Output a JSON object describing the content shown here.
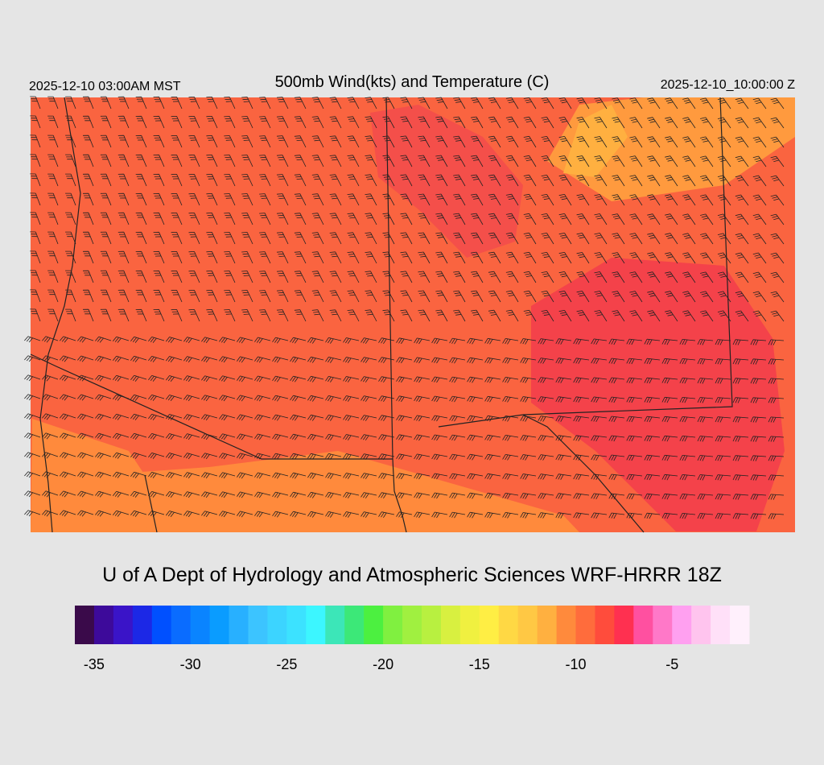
{
  "header": {
    "left": "2025-12-10 03:00AM MST",
    "title": "500mb Wind(kts) and Temperature (C)",
    "right": "2025-12-10_10:00:00 Z"
  },
  "footer": {
    "credit": "U of A Dept of Hydrology and Atmospheric Sciences WRF-HRRR 18Z"
  },
  "colorbar": {
    "range": [
      -36,
      -1
    ],
    "colors": [
      "#3a0a4a",
      "#3d0a9a",
      "#3a14c8",
      "#1c28e6",
      "#0050ff",
      "#0a6cff",
      "#0a84ff",
      "#0a9cff",
      "#28b0ff",
      "#3cc4ff",
      "#3cd4ff",
      "#3ce2ff",
      "#3cf6ff",
      "#3ce6b8",
      "#3ce878",
      "#4cf040",
      "#80f040",
      "#a0f040",
      "#b8f040",
      "#d8f040",
      "#f0f040",
      "#ffee44",
      "#ffd844",
      "#ffc844",
      "#ffb040",
      "#ff8a3c",
      "#ff6c3c",
      "#ff4c3c",
      "#ff3050",
      "#ff50a0",
      "#ff78c8",
      "#ffa0f0",
      "#ffc4ee",
      "#ffe0f8",
      "#fff0fc"
    ],
    "ticks": [
      -35,
      -30,
      -25,
      -20,
      -15,
      -10,
      -5
    ]
  }
}
